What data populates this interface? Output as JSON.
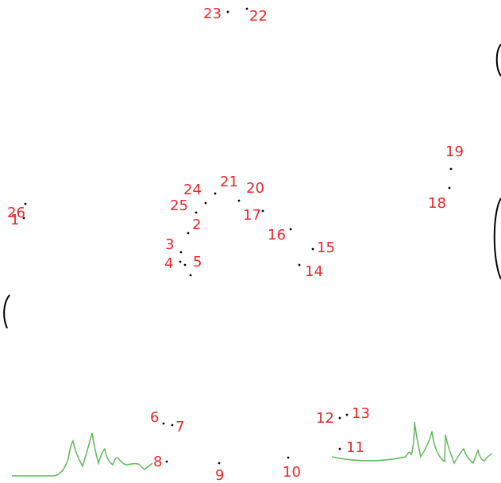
{
  "puzzle": {
    "number_color": "#e8262b",
    "dot_color": "#000000",
    "grass_color": "#5fb85a",
    "edge_stroke_color": "#000000",
    "dots": [
      {
        "n": "1"
      },
      {
        "n": "2"
      },
      {
        "n": "3"
      },
      {
        "n": "4"
      },
      {
        "n": "5"
      },
      {
        "n": "6"
      },
      {
        "n": "7"
      },
      {
        "n": "8"
      },
      {
        "n": "9"
      },
      {
        "n": "10"
      },
      {
        "n": "11"
      },
      {
        "n": "12"
      },
      {
        "n": "13"
      },
      {
        "n": "14"
      },
      {
        "n": "15"
      },
      {
        "n": "16"
      },
      {
        "n": "17"
      },
      {
        "n": "18"
      },
      {
        "n": "19"
      },
      {
        "n": "20"
      },
      {
        "n": "21"
      },
      {
        "n": "22"
      },
      {
        "n": "23"
      },
      {
        "n": "24"
      },
      {
        "n": "25"
      },
      {
        "n": "26"
      }
    ]
  }
}
